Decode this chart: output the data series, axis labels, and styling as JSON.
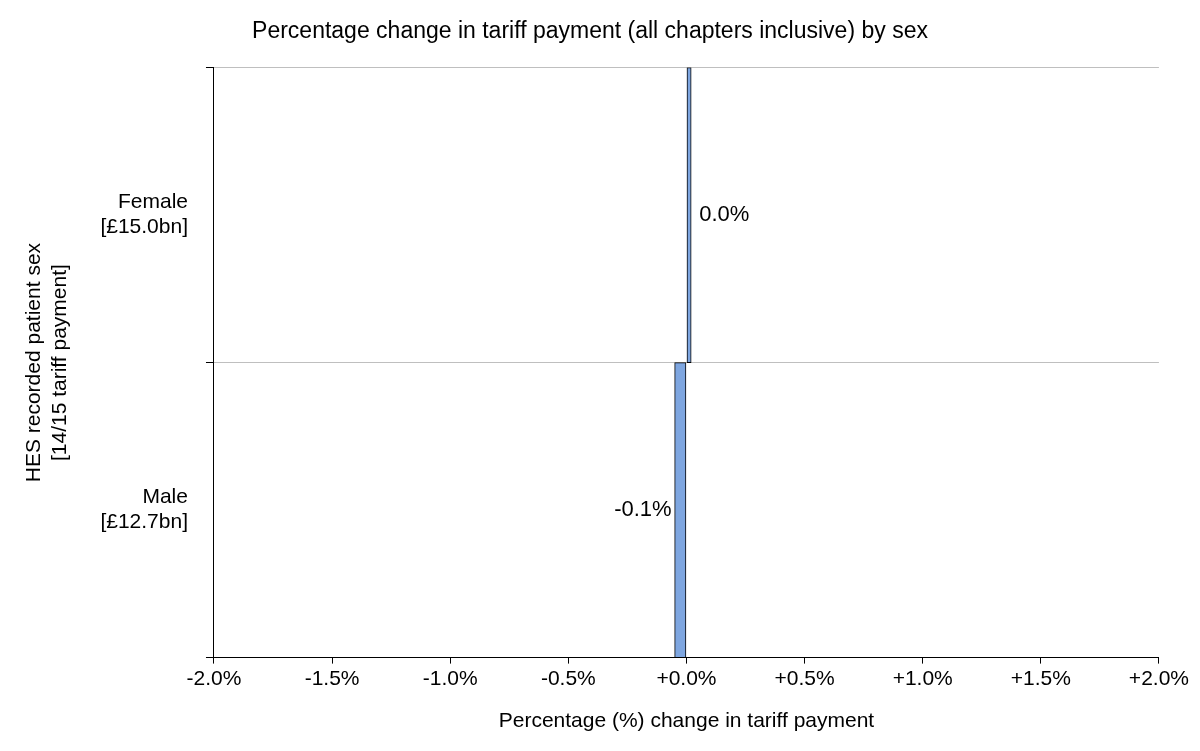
{
  "chart_data": {
    "type": "bar",
    "orientation": "horizontal",
    "title": "Percentage change in tariff payment (all chapters inclusive) by sex",
    "xlabel": "Percentage (%) change in tariff payment",
    "ylabel": "HES recorded patient sex\n[14/15 tariff payment]",
    "categories": [
      "Female\n[£15.0bn]",
      "Male\n[£12.7bn]"
    ],
    "values": [
      0.02,
      -0.05
    ],
    "color": "#7ea6e0",
    "value_labels": [
      "0.0%",
      "-0.1%"
    ],
    "xlim": [
      -2.0,
      2.0
    ],
    "xticks": [
      {
        "value": -2.0,
        "label": "-2.0%"
      },
      {
        "value": -1.5,
        "label": "-1.5%"
      },
      {
        "value": -1.0,
        "label": "-1.0%"
      },
      {
        "value": -0.5,
        "label": "-0.5%"
      },
      {
        "value": 0,
        "label": "+0.0%"
      },
      {
        "value": 0.5,
        "label": "+0.5%"
      },
      {
        "value": 1.0,
        "label": "+1.0%"
      },
      {
        "value": 1.5,
        "label": "+1.5%"
      },
      {
        "value": 2.0,
        "label": "+2.0%"
      }
    ],
    "grid": "y",
    "legend": false
  }
}
